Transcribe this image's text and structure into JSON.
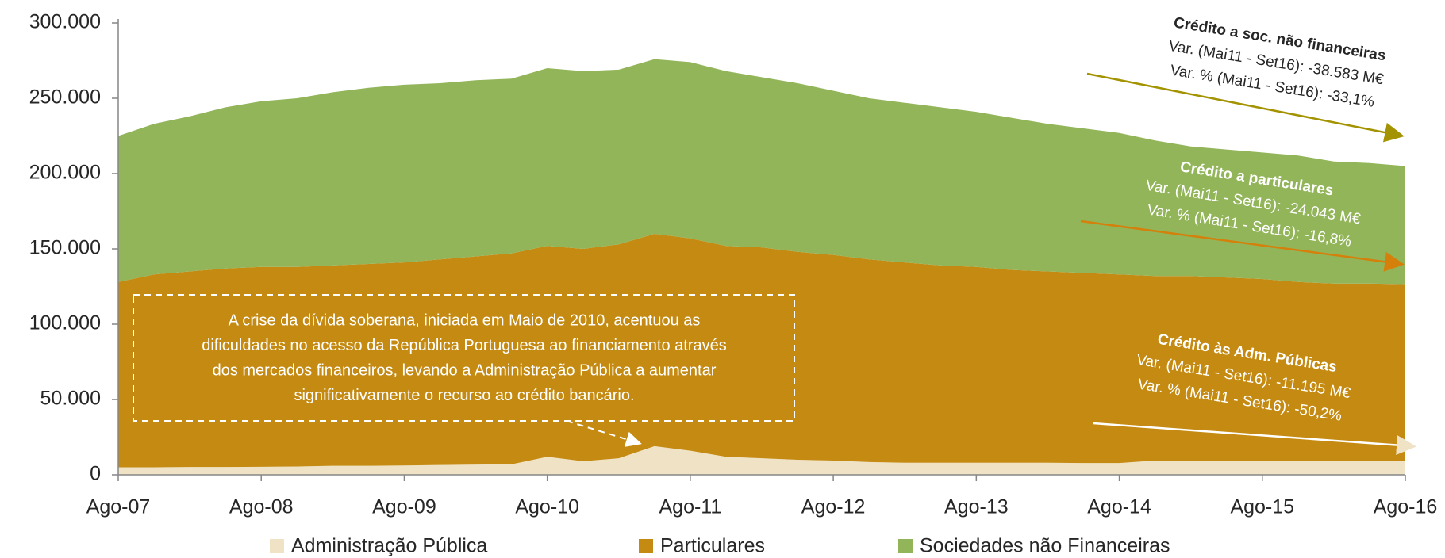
{
  "chart_data": {
    "type": "stacked_area",
    "categories": [
      "Ago-07",
      null,
      null,
      null,
      "Ago-08",
      null,
      null,
      null,
      "Ago-09",
      null,
      null,
      null,
      "Ago-10",
      null,
      null,
      null,
      "Ago-11",
      null,
      null,
      null,
      "Ago-12",
      null,
      null,
      null,
      "Ago-13",
      null,
      null,
      null,
      "Ago-14",
      null,
      null,
      null,
      "Ago-15",
      null,
      null,
      null,
      "Ago-16"
    ],
    "series": [
      {
        "name": "Administração Pública",
        "color": "#f0e2c4",
        "values": [
          5000,
          5000,
          5200,
          5200,
          5300,
          5500,
          6000,
          6000,
          6200,
          6500,
          6800,
          7000,
          12000,
          9000,
          11000,
          19000,
          16000,
          12000,
          11000,
          10000,
          9500,
          8500,
          8000,
          8000,
          8000,
          8000,
          8000,
          7800,
          7800,
          9500,
          9500,
          9500,
          9300,
          9200,
          9000,
          9000,
          9000
        ]
      },
      {
        "name": "Particulares",
        "color": "#c48a12",
        "values": [
          123000,
          128000,
          129800,
          131800,
          132700,
          132500,
          133000,
          134000,
          134800,
          136500,
          138200,
          140000,
          140000,
          141000,
          142000,
          141000,
          141000,
          140000,
          140000,
          138000,
          136500,
          134500,
          133000,
          131000,
          130000,
          128000,
          127000,
          126200,
          125200,
          122500,
          122500,
          121500,
          120700,
          118800,
          118000,
          118000,
          117500
        ]
      },
      {
        "name": "Sociedades não Financeiras",
        "color": "#92b55a",
        "values": [
          97000,
          100000,
          103000,
          107000,
          110000,
          112000,
          115000,
          117000,
          118000,
          117000,
          117000,
          116000,
          118000,
          118000,
          116000,
          116000,
          117000,
          116000,
          113000,
          112000,
          109000,
          107000,
          106000,
          105000,
          103000,
          101000,
          98000,
          96000,
          94000,
          90000,
          86000,
          85000,
          84000,
          84000,
          81000,
          80000,
          78500
        ]
      }
    ],
    "ylim": [
      0,
      300000
    ],
    "yticks": [
      {
        "value": 0,
        "label": "0"
      },
      {
        "value": 50000,
        "label": "50.000"
      },
      {
        "value": 100000,
        "label": "100.000"
      },
      {
        "value": 150000,
        "label": "150.000"
      },
      {
        "value": 200000,
        "label": "200.000"
      },
      {
        "value": 250000,
        "label": "250.000"
      },
      {
        "value": 300000,
        "label": "300.000"
      }
    ],
    "annotations": [
      {
        "title": "Crédito a soc. não financeiras",
        "lines": [
          "Var. (Mai11 - Set16): -38.583 M€",
          "Var. % (Mai11 - Set16): -33,1%"
        ]
      },
      {
        "title": "Crédito a particulares",
        "lines": [
          "Var. (Mai11 - Set16): -24.043 M€",
          "Var. % (Mai11 - Set16): -16,8%"
        ]
      },
      {
        "title": "Crédito às Adm. Públicas",
        "lines": [
          "Var. (Mai11 - Set16): -11.195 M€",
          "Var. % (Mai11 - Set16): -50,2%"
        ]
      }
    ],
    "note": [
      "A crise da dívida soberana, iniciada em Maio de 2010, acentuou as",
      "dificuldades no acesso da República Portuguesa ao financiamento através",
      "dos mercados financeiros, levando a Administração Pública a aumentar",
      "significativamente o recurso ao crédito bancário."
    ]
  }
}
